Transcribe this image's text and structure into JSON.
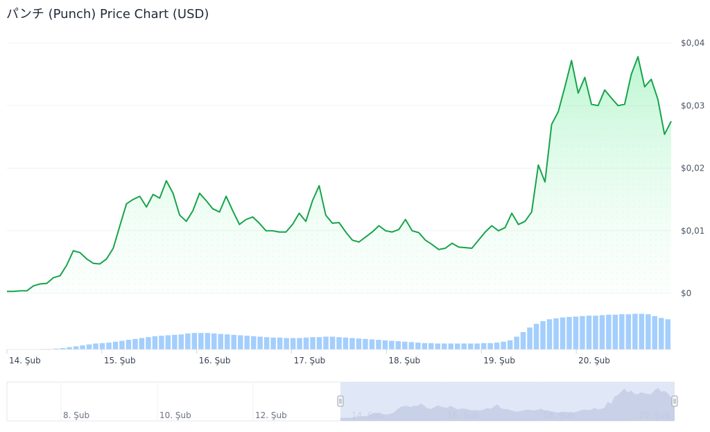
{
  "title": "パンチ (Punch) Price Chart (USD)",
  "colors": {
    "line": "#16a34a",
    "fillTop": "#bbf7d0",
    "volume": "#93c5fd",
    "navSelect": "#dbe3f5",
    "grid": "#eef0f3"
  },
  "chart_data": {
    "type": "line",
    "title": "パンチ (Punch) Price Chart (USD)",
    "ylim": [
      0,
      0.04
    ],
    "y_ticks": [
      "$0",
      "$0,01",
      "$0,02",
      "$0,03",
      "$0,04"
    ],
    "x_ticks": [
      "14. Şub",
      "15. Şub",
      "16. Şub",
      "17. Şub",
      "18. Şub",
      "19. Şub",
      "20. Şub"
    ],
    "series": [
      {
        "x": [
          0,
          0.07,
          0.14,
          0.21,
          0.28,
          0.35,
          0.42,
          0.49,
          0.56,
          0.63,
          0.7,
          0.77,
          0.84,
          0.91,
          0.98,
          1.05,
          1.12,
          1.19,
          1.26,
          1.33,
          1.4,
          1.47,
          1.54,
          1.61,
          1.68,
          1.75,
          1.82,
          1.89,
          1.96,
          2.03,
          2.1,
          2.17,
          2.24,
          2.31,
          2.38,
          2.45,
          2.52,
          2.59,
          2.66,
          2.73,
          2.8,
          2.87,
          2.94,
          3.01,
          3.08,
          3.15,
          3.22,
          3.29,
          3.36,
          3.43,
          3.5,
          3.57,
          3.64,
          3.71,
          3.78,
          3.85,
          3.92,
          3.99,
          4.06,
          4.13,
          4.2,
          4.27,
          4.34,
          4.41,
          4.48,
          4.55,
          4.62,
          4.69,
          4.76,
          4.83,
          4.9,
          4.97,
          5.04,
          5.11,
          5.18,
          5.25,
          5.32,
          5.39,
          5.46,
          5.53,
          5.6,
          5.67,
          5.74,
          5.81,
          5.88,
          5.95,
          6.02,
          6.09,
          6.16,
          6.23,
          6.3,
          6.37,
          6.44,
          6.51,
          6.58,
          6.65,
          6.72,
          6.79,
          6.86,
          6.93,
          7.0
        ],
        "values": [
          0.0003,
          0.0003,
          0.0004,
          0.0004,
          0.0012,
          0.0015,
          0.0016,
          0.0025,
          0.0028,
          0.0045,
          0.0068,
          0.0065,
          0.0055,
          0.0048,
          0.0047,
          0.0055,
          0.0072,
          0.0108,
          0.0143,
          0.015,
          0.0155,
          0.0138,
          0.0158,
          0.0152,
          0.018,
          0.016,
          0.0125,
          0.0115,
          0.0132,
          0.016,
          0.0148,
          0.0135,
          0.013,
          0.0155,
          0.0132,
          0.011,
          0.0118,
          0.0122,
          0.0112,
          0.01,
          0.01,
          0.0098,
          0.0098,
          0.011,
          0.0128,
          0.0115,
          0.0148,
          0.0172,
          0.0125,
          0.0112,
          0.0113,
          0.0098,
          0.0085,
          0.0082,
          0.009,
          0.0098,
          0.0108,
          0.01,
          0.0098,
          0.0102,
          0.0118,
          0.01,
          0.0097,
          0.0085,
          0.0078,
          0.007,
          0.0072,
          0.008,
          0.0074,
          0.0073,
          0.0072,
          0.0085,
          0.0098,
          0.0108,
          0.01,
          0.0105,
          0.0128,
          0.011,
          0.0115,
          0.013,
          0.0205,
          0.0178,
          0.027,
          0.029,
          0.033,
          0.0372,
          0.032,
          0.0345,
          0.0302,
          0.03,
          0.0325,
          0.0312,
          0.03,
          0.0302,
          0.035,
          0.0378,
          0.033,
          0.0342,
          0.031,
          0.0254,
          0.0275
        ]
      }
    ],
    "volume": [
      0.0,
      0.0,
      0.0,
      0.0,
      0.0,
      0.01,
      0.01,
      0.02,
      0.03,
      0.05,
      0.07,
      0.09,
      0.11,
      0.13,
      0.14,
      0.15,
      0.17,
      0.19,
      0.21,
      0.23,
      0.25,
      0.27,
      0.29,
      0.3,
      0.31,
      0.32,
      0.33,
      0.35,
      0.36,
      0.36,
      0.36,
      0.35,
      0.34,
      0.33,
      0.32,
      0.31,
      0.3,
      0.29,
      0.28,
      0.27,
      0.26,
      0.26,
      0.25,
      0.25,
      0.25,
      0.26,
      0.27,
      0.27,
      0.28,
      0.28,
      0.27,
      0.26,
      0.25,
      0.24,
      0.23,
      0.22,
      0.21,
      0.2,
      0.19,
      0.18,
      0.17,
      0.16,
      0.15,
      0.14,
      0.14,
      0.13,
      0.13,
      0.13,
      0.13,
      0.13,
      0.13,
      0.13,
      0.14,
      0.14,
      0.15,
      0.17,
      0.2,
      0.28,
      0.38,
      0.48,
      0.56,
      0.62,
      0.66,
      0.68,
      0.7,
      0.71,
      0.72,
      0.73,
      0.74,
      0.74,
      0.75,
      0.76,
      0.76,
      0.77,
      0.77,
      0.78,
      0.78,
      0.77,
      0.73,
      0.69,
      0.66
    ],
    "navigator": {
      "x_ticks": [
        "8. Şub",
        "10. Şub",
        "12. Şub",
        "14. Şub",
        "16. Şub",
        "18. Şub",
        "20. Şub"
      ]
    }
  }
}
